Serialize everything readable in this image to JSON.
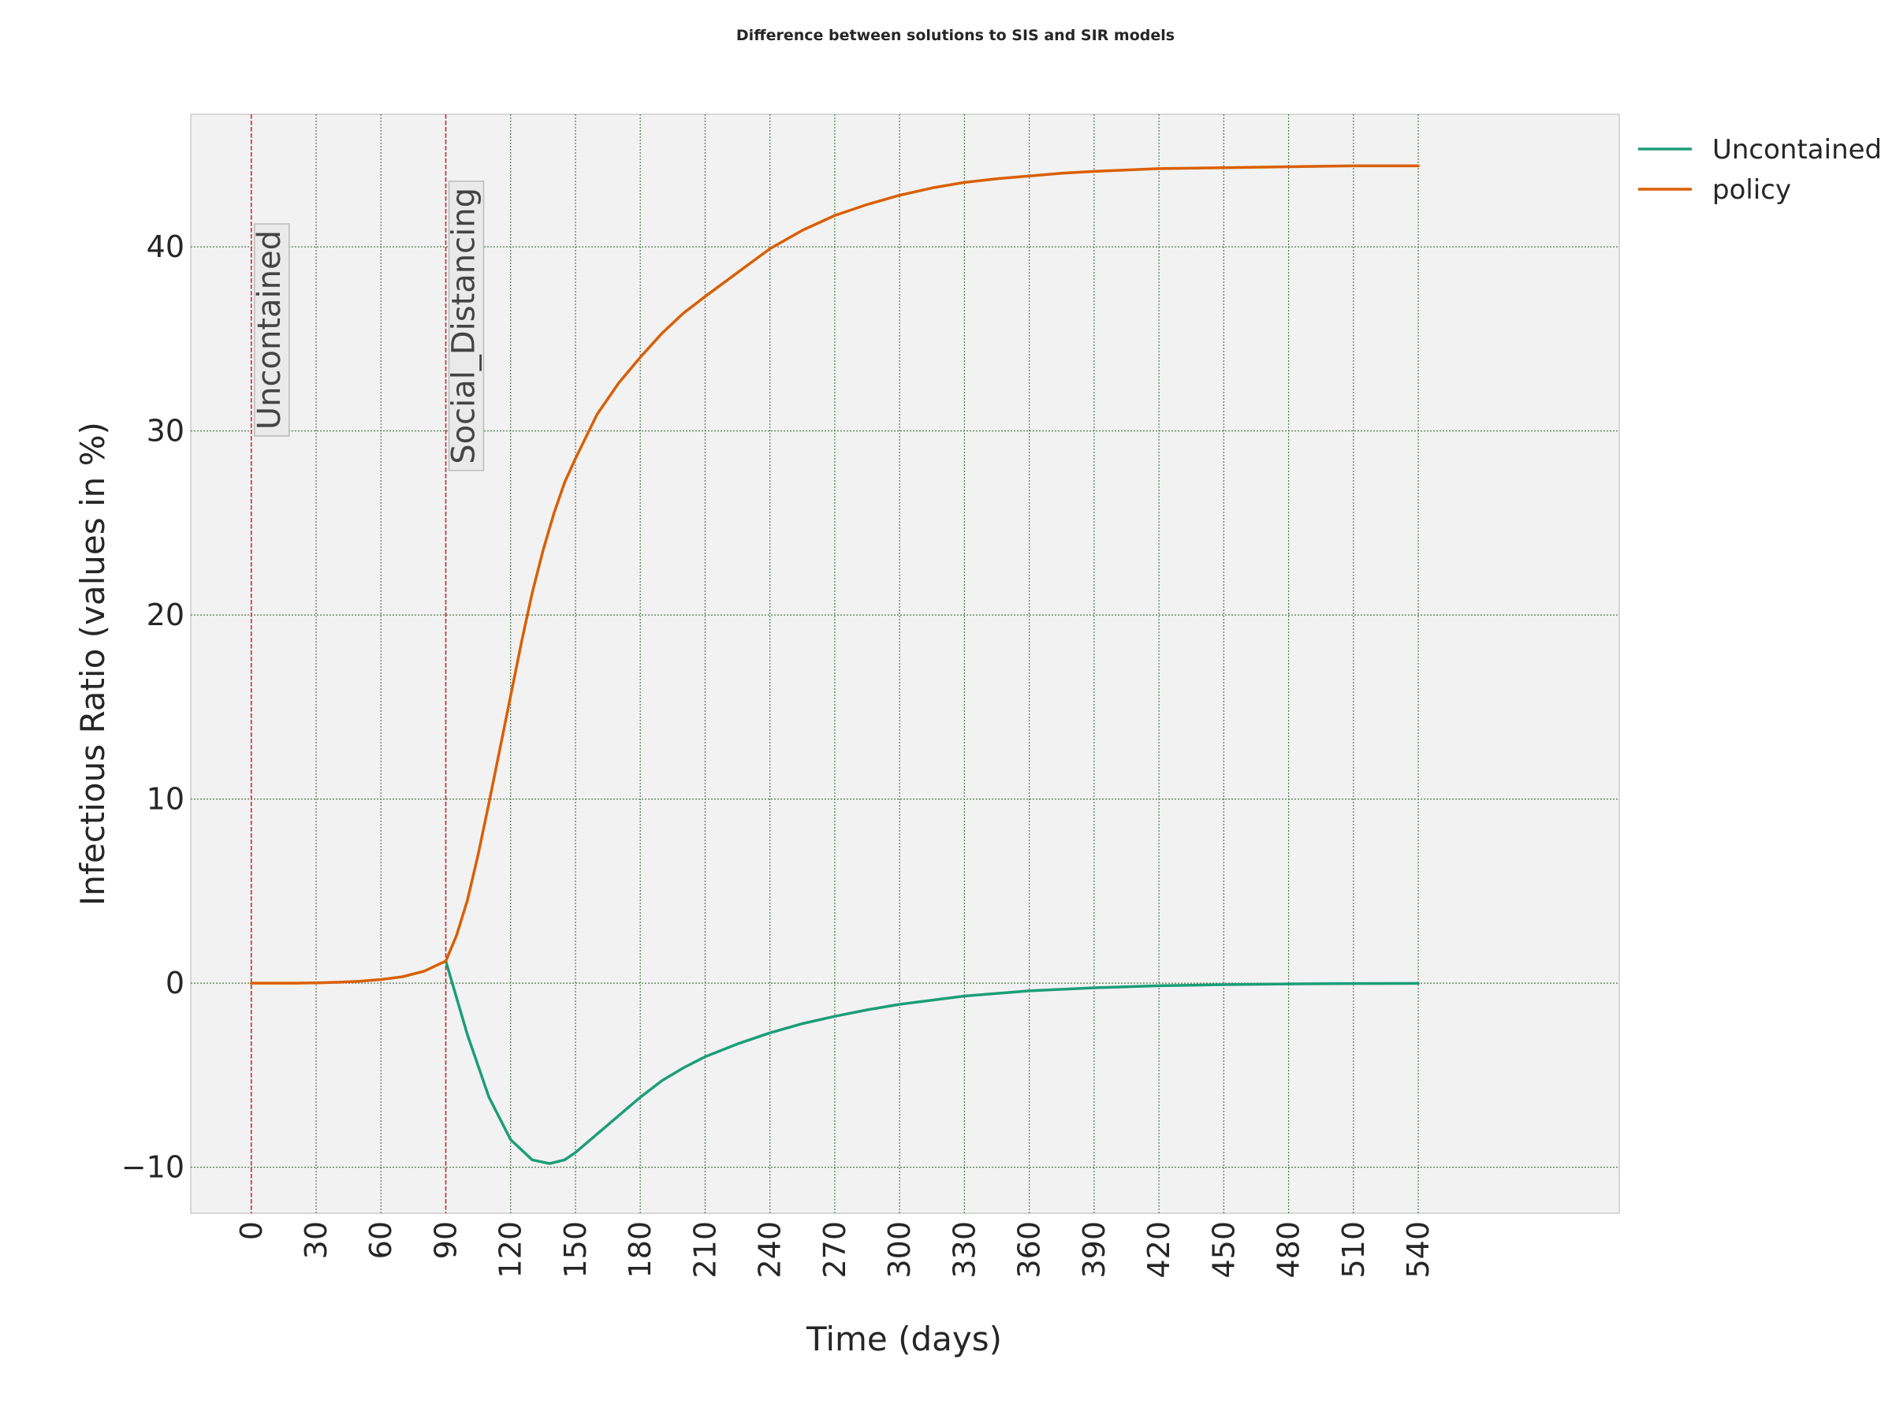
{
  "chart_data": {
    "type": "line",
    "title": "Difference between solutions to SIS and SIR models",
    "xlabel": "Time (days)",
    "ylabel": "Infectious Ratio (values in %)",
    "xlim": [
      -28,
      633
    ],
    "ylim": [
      -12.5,
      47.2
    ],
    "xticks": [
      0,
      30,
      60,
      90,
      120,
      150,
      180,
      210,
      240,
      270,
      300,
      330,
      360,
      390,
      420,
      450,
      480,
      510,
      540
    ],
    "yticks": [
      -10,
      0,
      10,
      20,
      30,
      40
    ],
    "ytick_labels": [
      "−10",
      "0",
      "10",
      "20",
      "30",
      "40"
    ],
    "grid": true,
    "legend_position": "outside-top-right",
    "series": [
      {
        "name": "Uncontained",
        "color": "#1b9e77",
        "x": [
          90,
          100,
          110,
          120,
          130,
          138,
          145,
          150,
          160,
          170,
          180,
          190,
          200,
          210,
          225,
          240,
          255,
          270,
          285,
          300,
          330,
          360,
          390,
          420,
          450,
          480,
          510,
          540
        ],
        "y": [
          1.2,
          -2.8,
          -6.2,
          -8.5,
          -9.6,
          -9.8,
          -9.6,
          -9.2,
          -8.2,
          -7.2,
          -6.2,
          -5.3,
          -4.6,
          -4.0,
          -3.3,
          -2.7,
          -2.2,
          -1.8,
          -1.45,
          -1.15,
          -0.7,
          -0.42,
          -0.25,
          -0.14,
          -0.08,
          -0.04,
          -0.02,
          -0.01
        ]
      },
      {
        "name": "policy",
        "color": "#d95f02",
        "x": [
          0,
          10,
          20,
          30,
          40,
          50,
          60,
          70,
          80,
          90,
          95,
          100,
          105,
          110,
          115,
          120,
          125,
          130,
          135,
          140,
          145,
          150,
          160,
          170,
          180,
          190,
          200,
          210,
          225,
          240,
          255,
          270,
          285,
          300,
          315,
          330,
          345,
          360,
          375,
          390,
          420,
          450,
          480,
          510,
          540
        ],
        "y": [
          0,
          0,
          0,
          0.02,
          0.05,
          0.1,
          0.2,
          0.35,
          0.65,
          1.2,
          2.6,
          4.5,
          7.0,
          9.8,
          12.7,
          15.6,
          18.5,
          21.2,
          23.5,
          25.5,
          27.2,
          28.5,
          30.9,
          32.6,
          34.0,
          35.3,
          36.4,
          37.3,
          38.6,
          39.9,
          40.9,
          41.7,
          42.3,
          42.8,
          43.2,
          43.5,
          43.7,
          43.85,
          44.0,
          44.1,
          44.25,
          44.3,
          44.35,
          44.4,
          44.4
        ]
      }
    ],
    "annotations": [
      {
        "x": 0,
        "label": "Uncontained",
        "color": "#d62728"
      },
      {
        "x": 90,
        "label": "Social_Distancing",
        "color": "#d62728"
      }
    ]
  }
}
